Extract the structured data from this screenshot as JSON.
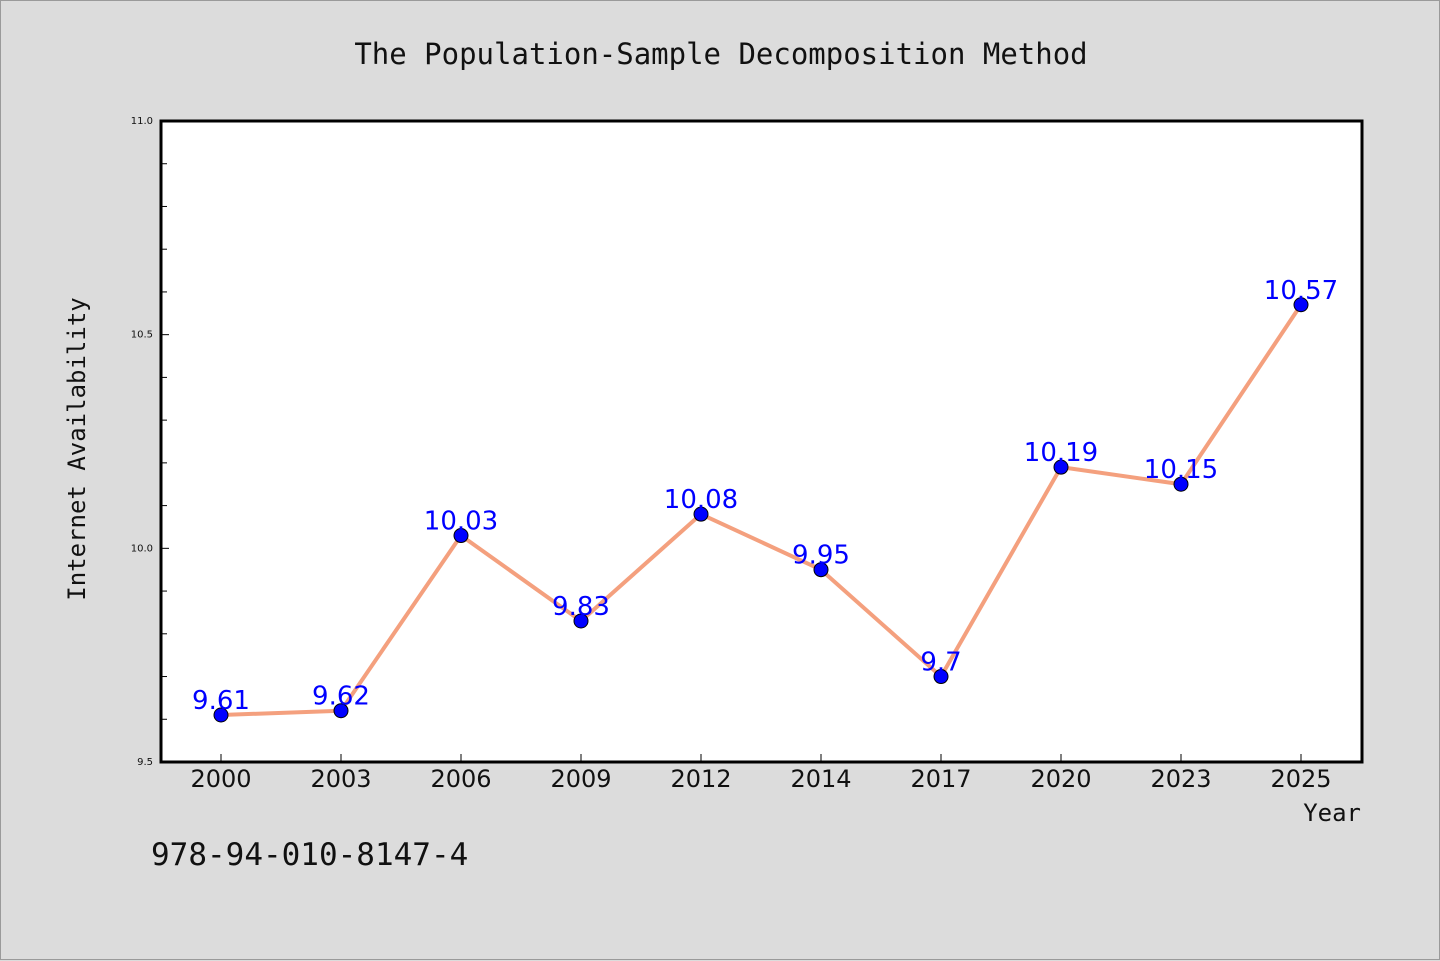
{
  "chart_data": {
    "type": "line",
    "title": "The Population-Sample Decomposition Method",
    "xlabel": "Year",
    "ylabel": "Internet Availability",
    "categories": [
      "2000",
      "2003",
      "2006",
      "2009",
      "2012",
      "2014",
      "2017",
      "2020",
      "2023",
      "2025"
    ],
    "series": [
      {
        "values": [
          9.61,
          9.62,
          10.03,
          9.83,
          10.08,
          9.95,
          9.7,
          10.19,
          10.15,
          10.57
        ],
        "labels": [
          "9.61",
          "9.62",
          "10.03",
          "9.83",
          "10.08",
          "9.95",
          "9.7",
          "10.19",
          "10.15",
          "10.57"
        ],
        "line_color": "#f4a07e",
        "marker_color": "#0000ff"
      }
    ],
    "ylim": [
      9.5,
      11.0
    ],
    "yticks": [
      "9.5",
      "10.0",
      "10.5",
      "11.0"
    ],
    "grid": false,
    "legend": "none"
  },
  "footer_text": "978-94-010-8147-4"
}
